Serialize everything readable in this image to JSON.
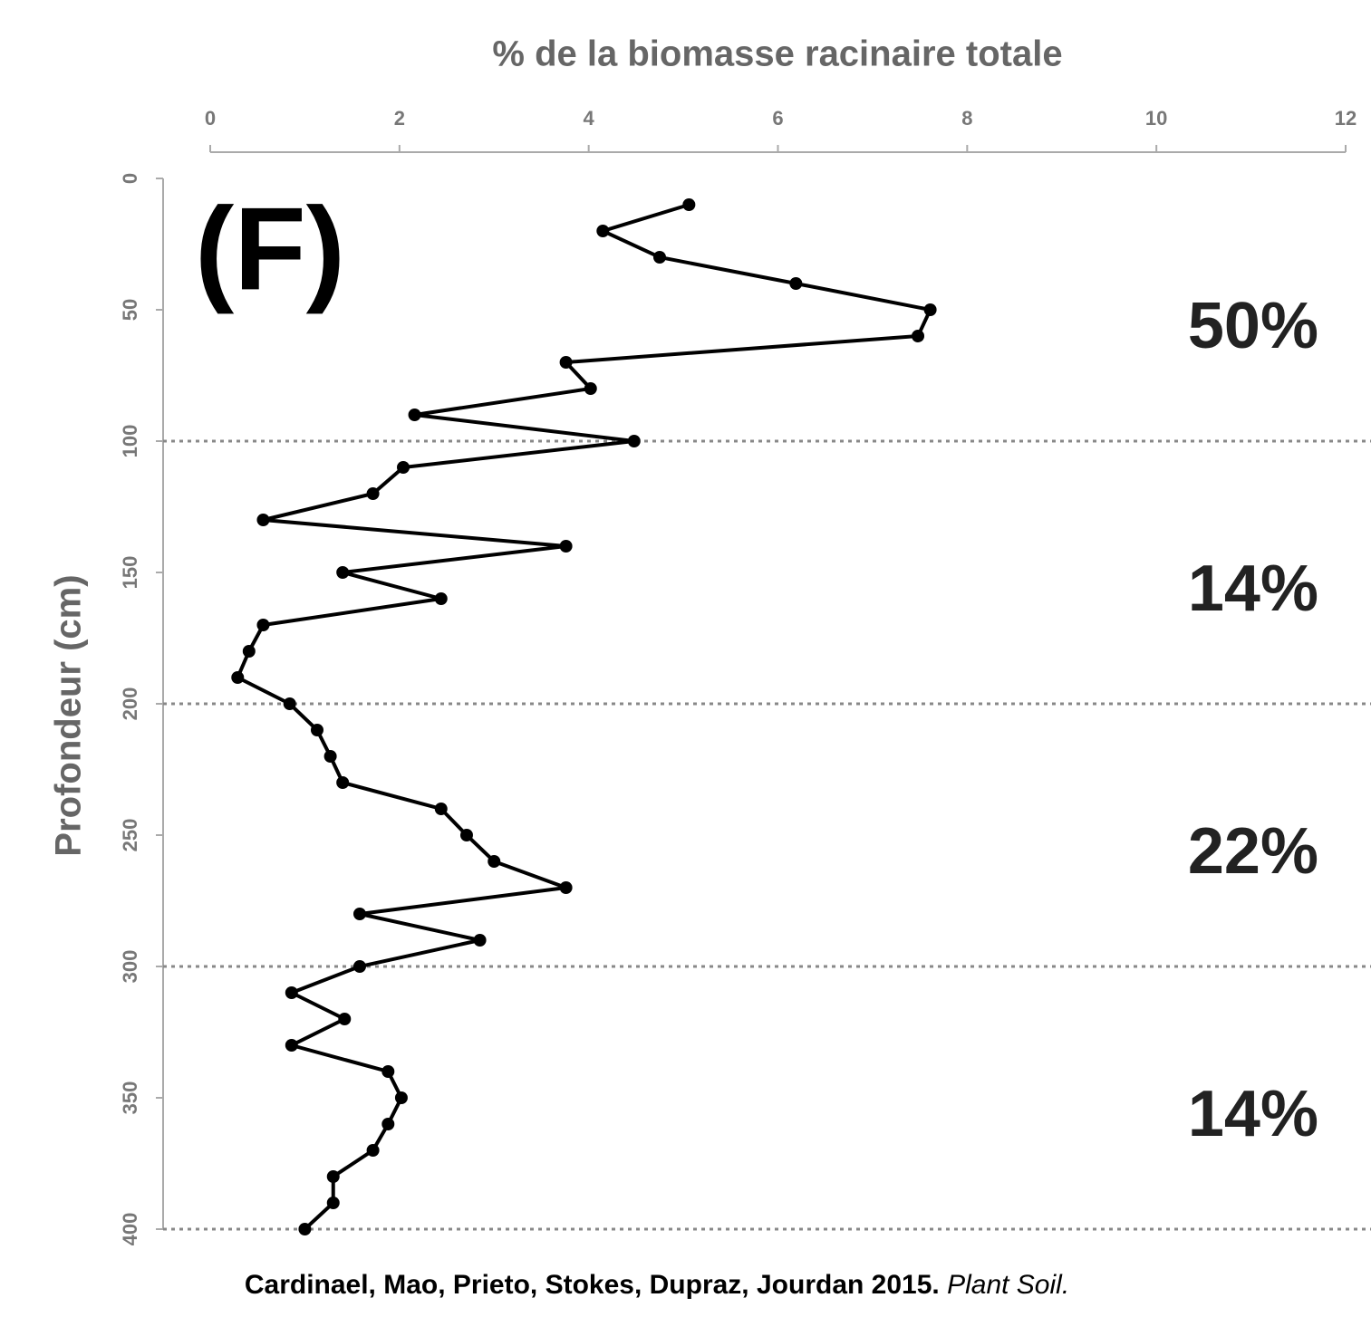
{
  "chart_data": {
    "type": "line",
    "x_label": "% de la biomasse racinaire totale",
    "y_label": "Profondeur (cm)",
    "panel_label": "(F)",
    "region_labels": [
      "50%",
      "14%",
      "22%",
      "14%"
    ],
    "citation": {
      "authors": "Cardinael, Mao, Prieto, Stokes, Dupraz, Jourdan 2015.",
      "journal": "Plant Soil."
    },
    "xlim": [
      0,
      12
    ],
    "xticks": [
      0,
      2,
      4,
      6,
      8,
      10,
      12
    ],
    "ylim": [
      0,
      400
    ],
    "yticks": [
      0,
      50,
      100,
      150,
      200,
      250,
      300,
      350,
      400
    ],
    "y_inverted": true,
    "hlines": [
      100,
      200,
      300,
      400
    ],
    "series": [
      {
        "color": "#000000",
        "x": [
          5.06,
          4.15,
          4.75,
          6.19,
          7.61,
          7.48,
          3.76,
          4.02,
          2.16,
          4.48,
          2.04,
          1.72,
          0.56,
          3.76,
          1.4,
          2.44,
          0.56,
          0.41,
          0.29,
          0.84,
          1.13,
          1.27,
          1.4,
          2.44,
          2.71,
          3.0,
          3.76,
          1.58,
          2.85,
          1.58,
          0.86,
          1.42,
          0.86,
          1.88,
          2.02,
          1.88,
          1.72,
          1.3,
          1.3,
          1.0
        ],
        "y": [
          10,
          20,
          30,
          40,
          50,
          60,
          70,
          80,
          90,
          100,
          110,
          120,
          130,
          140,
          150,
          160,
          170,
          180,
          190,
          200,
          210,
          220,
          230,
          240,
          250,
          260,
          270,
          280,
          290,
          300,
          310,
          320,
          330,
          340,
          350,
          360,
          370,
          380,
          390,
          400
        ]
      }
    ]
  }
}
